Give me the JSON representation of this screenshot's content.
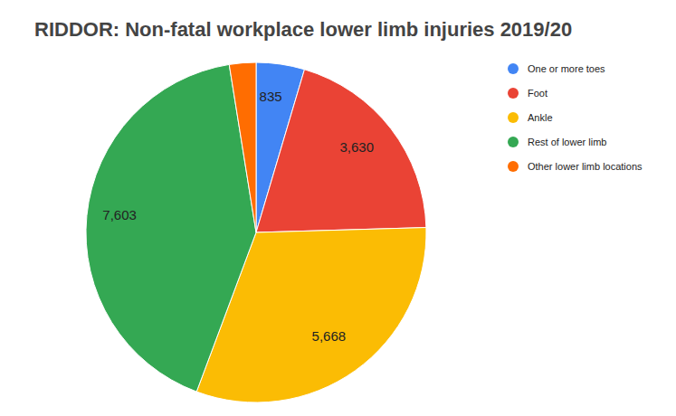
{
  "chart_data": {
    "type": "pie",
    "title": "RIDDOR: Non-fatal workplace lower limb injuries 2019/20",
    "categories": [
      "One or more toes",
      "Foot",
      "Ankle",
      "Rest of lower limb",
      "Other lower limb locations"
    ],
    "values": [
      835,
      3630,
      5668,
      7603,
      460
    ],
    "value_labels": [
      "835",
      "3,630",
      "5,668",
      "7,603",
      null
    ],
    "colors": [
      "#4285f4",
      "#ea4335",
      "#fbbc04",
      "#34a853",
      "#ff6d01"
    ],
    "data_labels": true,
    "legend": "right"
  }
}
